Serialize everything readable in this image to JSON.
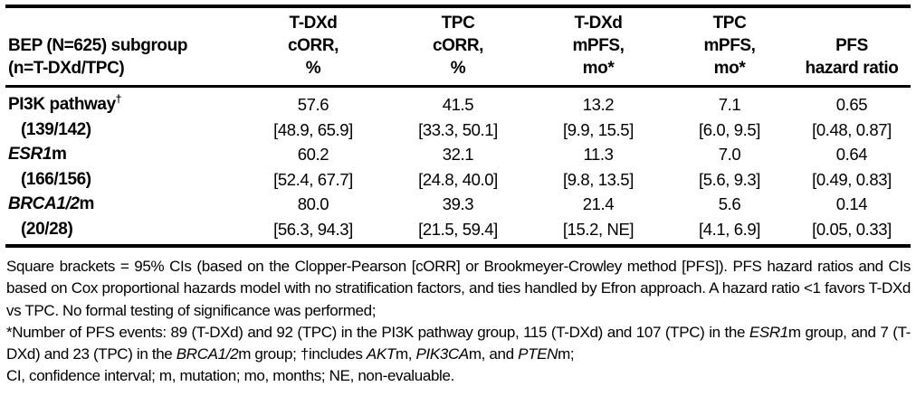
{
  "colors": {
    "text": "#000000",
    "background": "#ffffff",
    "rule": "#000000"
  },
  "table": {
    "header": {
      "col0_lines": [
        "BEP (N=625) subgroup",
        "(n=T-DXd/TPC)"
      ],
      "col1_lines": [
        "T-DXd",
        "cORR,",
        "%"
      ],
      "col2_lines": [
        "TPC",
        "cORR,",
        "%"
      ],
      "col3_lines": [
        "T-DXd",
        "mPFS,",
        "mo*"
      ],
      "col4_lines": [
        "TPC",
        "mPFS,",
        "mo*"
      ],
      "col5_lines": [
        "PFS",
        "hazard ratio"
      ]
    },
    "rows": [
      {
        "label_segments": [
          {
            "text": "PI3K pathway"
          },
          {
            "text": "†",
            "sup": true
          }
        ],
        "n_label": "(139/142)",
        "values": [
          "57.6",
          "41.5",
          "13.2",
          "7.1",
          "0.65"
        ],
        "cis": [
          "[48.9, 65.9]",
          "[33.3, 50.1]",
          "[9.9, 15.5]",
          "[6.0, 9.5]",
          "[0.48, 0.87]"
        ]
      },
      {
        "label_segments": [
          {
            "text": "ESR1",
            "italic": true
          },
          {
            "text": "m"
          }
        ],
        "n_label": "(166/156)",
        "values": [
          "60.2",
          "32.1",
          "11.3",
          "7.0",
          "0.64"
        ],
        "cis": [
          "[52.4, 67.7]",
          "[24.8, 40.0]",
          "[9.8, 13.5]",
          "[5.6, 9.3]",
          "[0.49, 0.83]"
        ]
      },
      {
        "label_segments": [
          {
            "text": "BRCA1/2",
            "italic": true
          },
          {
            "text": "m"
          }
        ],
        "n_label": "(20/28)",
        "values": [
          "80.0",
          "39.3",
          "21.4",
          "5.6",
          "0.14"
        ],
        "cis": [
          "[56.3, 94.3]",
          "[21.5, 59.4]",
          "[15.2, NE]",
          "[4.1, 6.9]",
          "[0.05, 0.33]"
        ]
      }
    ]
  },
  "footnotes": {
    "p1": [
      {
        "text": "Square brackets = 95% CIs (based on the Clopper-Pearson [cORR] or Brookmeyer-Crowley method [PFS]). PFS hazard ratios and CIs based on Cox proportional hazards model with no stratification factors, and ties handled by Efron approach. A hazard ratio <1 favors T-DXd vs TPC. No formal testing of significance was performed;"
      }
    ],
    "p2": [
      {
        "text": "*Number of PFS events: 89 (T-DXd) and 92 (TPC) in the PI3K pathway group, 115 (T-DXd) and 107 (TPC) in the "
      },
      {
        "text": "ESR1",
        "italic": true
      },
      {
        "text": "m group, and 7 (T-DXd) and 23 (TPC) in the "
      },
      {
        "text": "BRCA1/2",
        "italic": true
      },
      {
        "text": "m group; †includes "
      },
      {
        "text": "AKT",
        "italic": true
      },
      {
        "text": "m, "
      },
      {
        "text": "PIK3CA",
        "italic": true
      },
      {
        "text": "m, and "
      },
      {
        "text": "PTEN",
        "italic": true
      },
      {
        "text": "m;"
      }
    ],
    "p3": [
      {
        "text": "CI, confidence interval; m, mutation; mo, months; NE, non-evaluable."
      }
    ]
  }
}
